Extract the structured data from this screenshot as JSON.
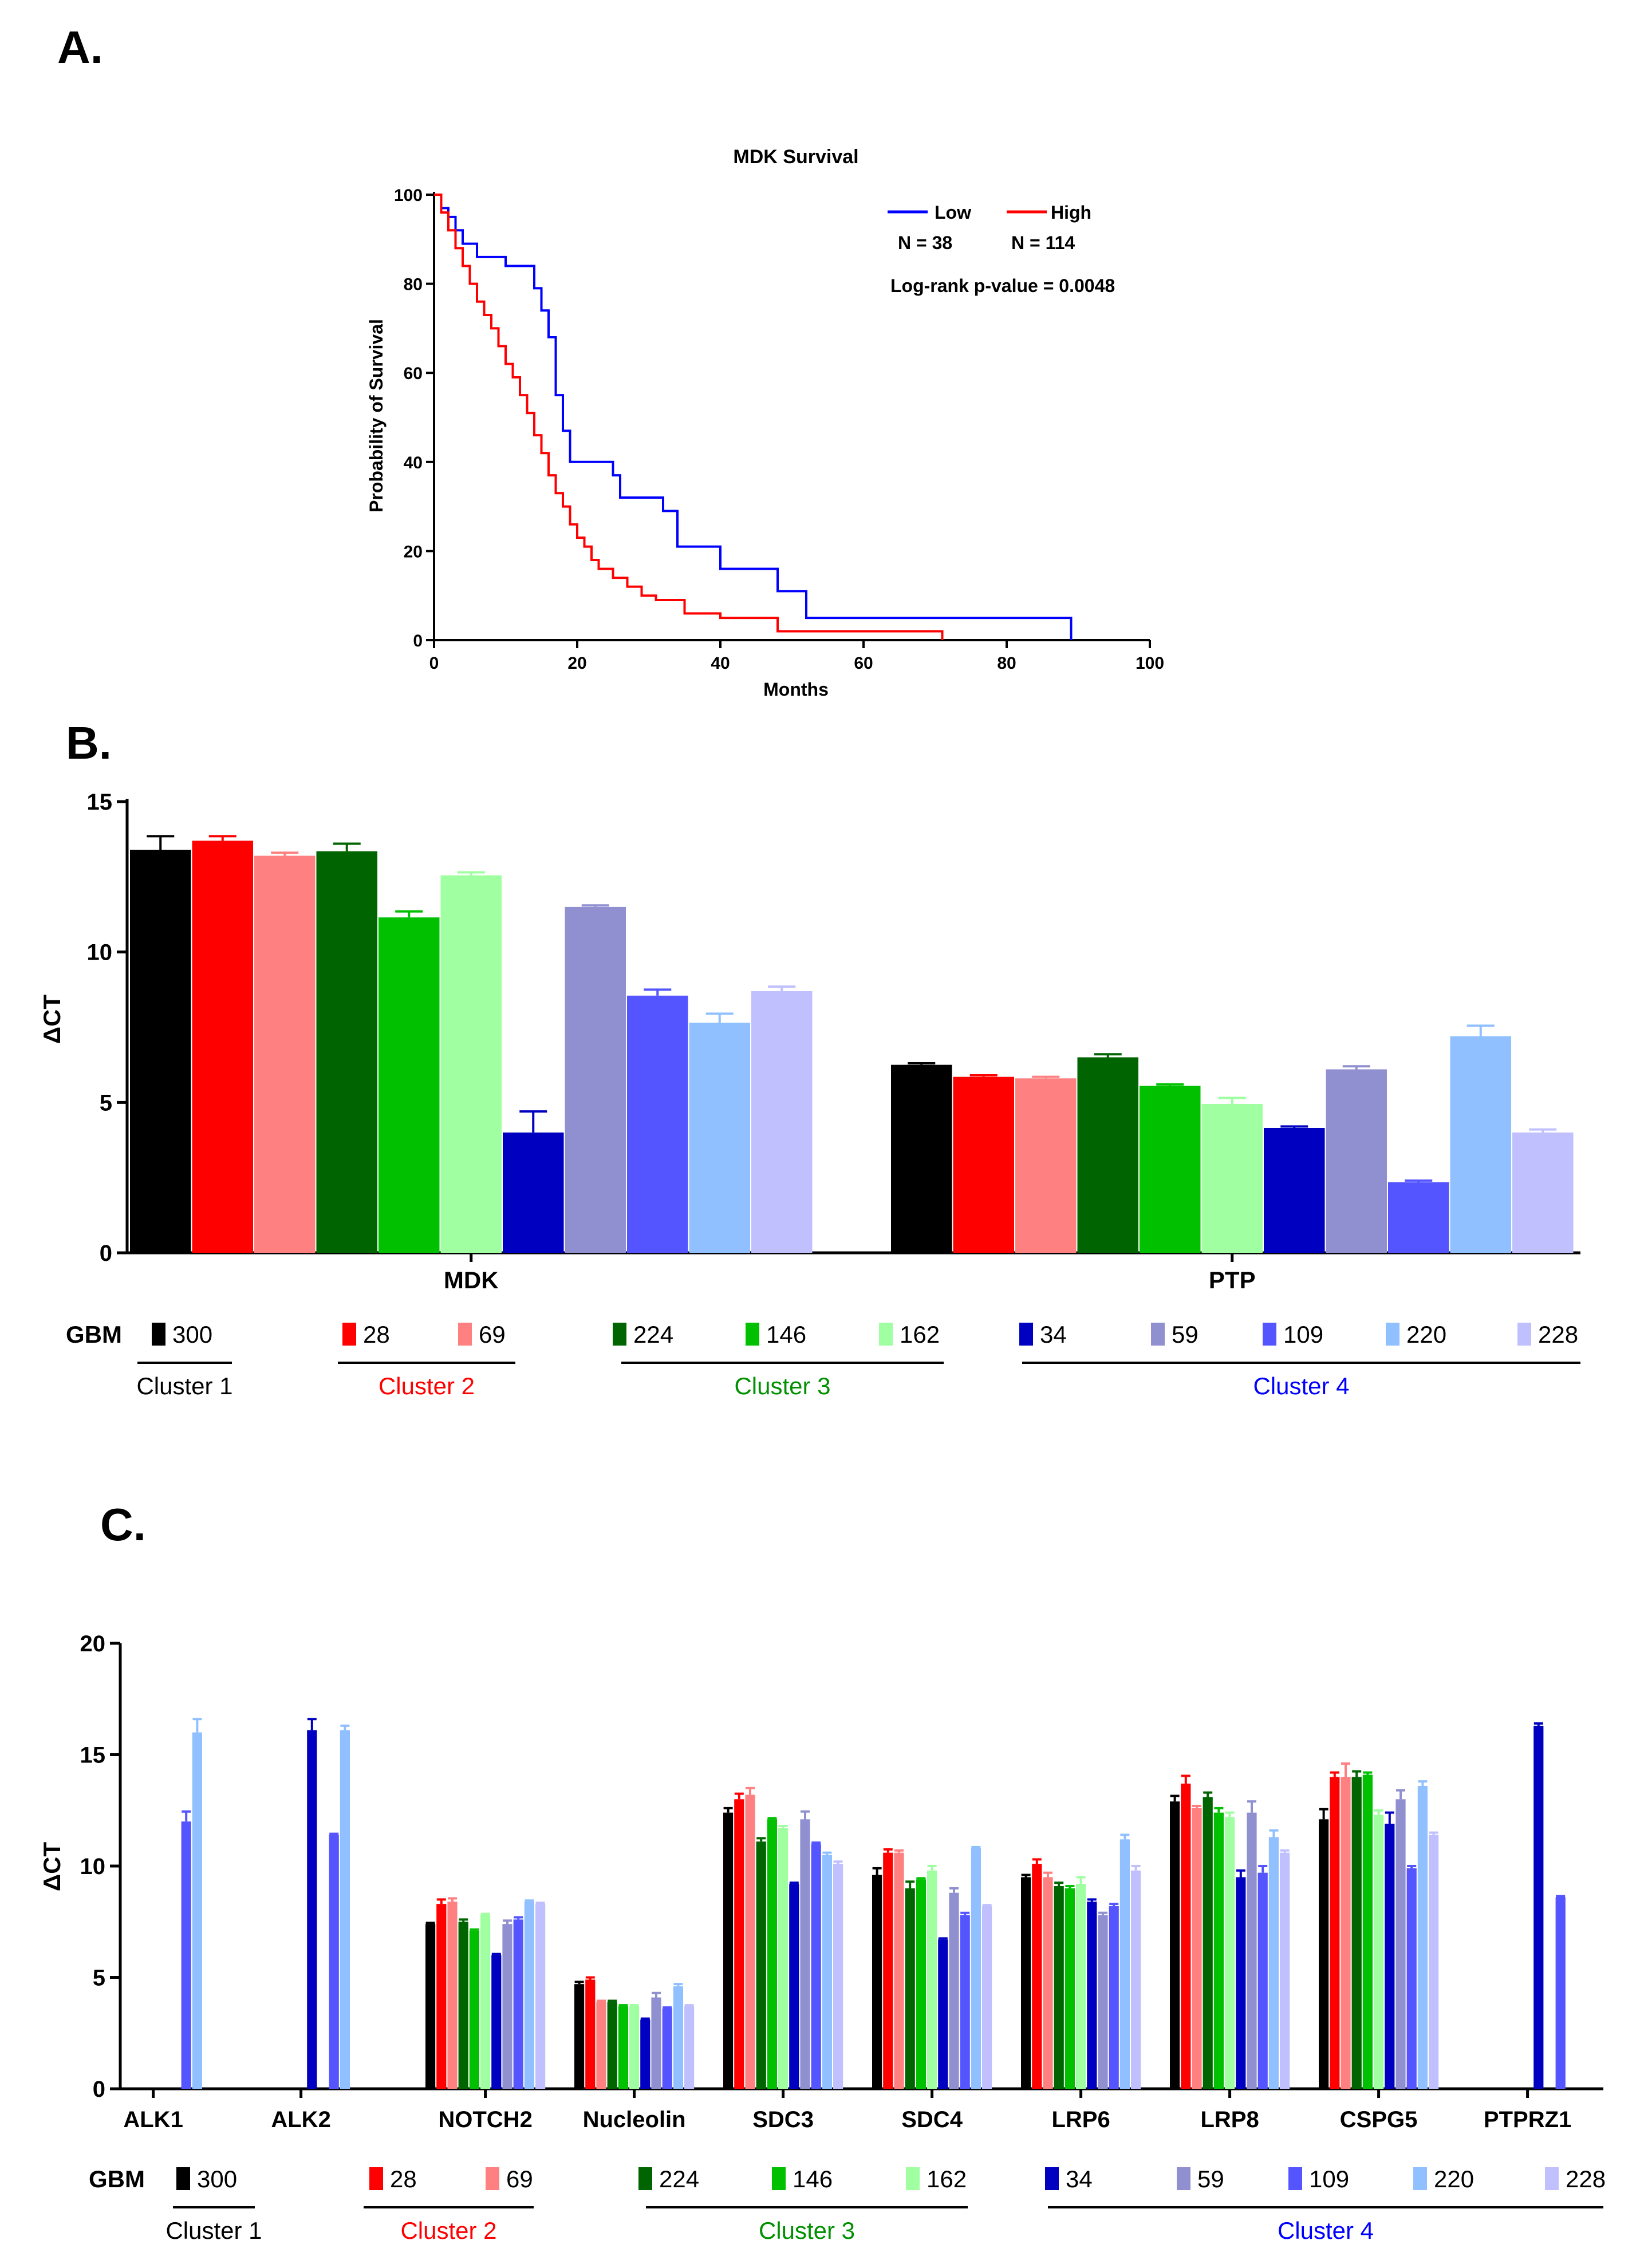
{
  "panels": {
    "a": {
      "label": "A."
    },
    "b": {
      "label": "B."
    },
    "c": {
      "label": "C."
    }
  },
  "legend": {
    "gbm_label": "GBM",
    "items": [
      {
        "id": "300",
        "color": "#000000"
      },
      {
        "id": "28",
        "color": "#ff0000"
      },
      {
        "id": "69",
        "color": "#ff8080"
      },
      {
        "id": "224",
        "color": "#006400"
      },
      {
        "id": "146",
        "color": "#00c000"
      },
      {
        "id": "162",
        "color": "#a0ffa0"
      },
      {
        "id": "34",
        "color": "#0000c0"
      },
      {
        "id": "59",
        "color": "#9090d0"
      },
      {
        "id": "109",
        "color": "#5555ff"
      },
      {
        "id": "220",
        "color": "#90c0ff"
      },
      {
        "id": "228",
        "color": "#c0c0ff"
      }
    ],
    "clusters": [
      {
        "name": "Cluster 1",
        "color": "#000000"
      },
      {
        "name": "Cluster 2",
        "color": "#ff0000"
      },
      {
        "name": "Cluster 3",
        "color": "#009000"
      },
      {
        "name": "Cluster 4",
        "color": "#0000ff"
      }
    ]
  },
  "chart_data": [
    {
      "type": "line",
      "title": "MDK Survival",
      "xlabel": "Months",
      "ylabel": "Probability of Survival",
      "xlim": [
        0,
        100
      ],
      "ylim": [
        0,
        100
      ],
      "xticks": [
        0,
        20,
        40,
        60,
        80,
        100
      ],
      "yticks": [
        0,
        20,
        40,
        60,
        80,
        100
      ],
      "legend": {
        "low_label": "Low",
        "high_label": "High",
        "low_n": "N = 38",
        "high_n": "N = 114",
        "pvalue": "Log-rank p-value = 0.0048"
      },
      "series": [
        {
          "name": "Low",
          "color": "#0000ff",
          "points": [
            [
              0,
              100
            ],
            [
              1,
              97
            ],
            [
              2,
              95
            ],
            [
              3,
              92
            ],
            [
              4,
              89
            ],
            [
              5,
              89
            ],
            [
              6,
              86
            ],
            [
              9,
              86
            ],
            [
              10,
              84
            ],
            [
              13,
              84
            ],
            [
              14,
              79
            ],
            [
              15,
              74
            ],
            [
              16,
              68
            ],
            [
              17,
              55
            ],
            [
              18,
              47
            ],
            [
              19,
              40
            ],
            [
              24,
              40
            ],
            [
              25,
              37
            ],
            [
              26,
              32
            ],
            [
              30,
              32
            ],
            [
              32,
              29
            ],
            [
              34,
              21
            ],
            [
              39,
              21
            ],
            [
              40,
              16
            ],
            [
              47,
              16
            ],
            [
              48,
              11
            ],
            [
              51,
              11
            ],
            [
              52,
              5
            ],
            [
              89,
              5
            ],
            [
              89,
              0
            ]
          ]
        },
        {
          "name": "High",
          "color": "#ff0000",
          "points": [
            [
              0,
              100
            ],
            [
              1,
              96
            ],
            [
              2,
              92
            ],
            [
              3,
              88
            ],
            [
              4,
              84
            ],
            [
              5,
              80
            ],
            [
              6,
              76
            ],
            [
              7,
              73
            ],
            [
              8,
              70
            ],
            [
              9,
              66
            ],
            [
              10,
              62
            ],
            [
              11,
              59
            ],
            [
              12,
              55
            ],
            [
              13,
              51
            ],
            [
              14,
              46
            ],
            [
              15,
              42
            ],
            [
              16,
              37
            ],
            [
              17,
              33
            ],
            [
              18,
              30
            ],
            [
              19,
              26
            ],
            [
              20,
              23
            ],
            [
              21,
              21
            ],
            [
              22,
              18
            ],
            [
              23,
              16
            ],
            [
              25,
              14
            ],
            [
              27,
              12
            ],
            [
              29,
              10
            ],
            [
              31,
              9
            ],
            [
              35,
              6
            ],
            [
              40,
              5
            ],
            [
              48,
              2
            ],
            [
              71,
              2
            ],
            [
              71,
              0
            ]
          ]
        }
      ]
    },
    {
      "type": "bar",
      "ylabel": "ΔCT",
      "ylim": [
        0,
        15
      ],
      "yticks": [
        0,
        5,
        10,
        15
      ],
      "categories": [
        "MDK",
        "PTP"
      ],
      "series": [
        {
          "name": "300",
          "values": [
            13.4,
            6.25
          ],
          "errors": [
            0.45,
            0.05
          ]
        },
        {
          "name": "28",
          "values": [
            13.7,
            5.85
          ],
          "errors": [
            0.15,
            0.05
          ]
        },
        {
          "name": "69",
          "values": [
            13.2,
            5.8
          ],
          "errors": [
            0.1,
            0.05
          ]
        },
        {
          "name": "224",
          "values": [
            13.35,
            6.5
          ],
          "errors": [
            0.25,
            0.1
          ]
        },
        {
          "name": "146",
          "values": [
            11.15,
            5.55
          ],
          "errors": [
            0.2,
            0.05
          ]
        },
        {
          "name": "162",
          "values": [
            12.55,
            4.95
          ],
          "errors": [
            0.1,
            0.2
          ]
        },
        {
          "name": "34",
          "values": [
            4.0,
            4.15
          ],
          "errors": [
            0.7,
            0.05
          ]
        },
        {
          "name": "59",
          "values": [
            11.5,
            6.1
          ],
          "errors": [
            0.05,
            0.1
          ]
        },
        {
          "name": "109",
          "values": [
            8.55,
            2.35
          ],
          "errors": [
            0.2,
            0.05
          ]
        },
        {
          "name": "220",
          "values": [
            7.65,
            7.2
          ],
          "errors": [
            0.3,
            0.35
          ]
        },
        {
          "name": "228",
          "values": [
            8.7,
            4.0
          ],
          "errors": [
            0.15,
            0.1
          ]
        }
      ]
    },
    {
      "type": "bar",
      "ylabel": "ΔCT",
      "ylim": [
        0,
        20
      ],
      "yticks": [
        0,
        5,
        10,
        15,
        20
      ],
      "categories": [
        "ALK1",
        "ALK2",
        "NOTCH2",
        "Nucleolin",
        "SDC3",
        "SDC4",
        "LRP6",
        "LRP8",
        "CSPG5",
        "PTPRZ1"
      ],
      "series": [
        {
          "name": "300",
          "values": [
            0,
            0,
            7.4,
            4.7,
            12.4,
            9.6,
            9.5,
            12.9,
            12.1,
            0
          ],
          "errors": [
            0,
            0,
            0.05,
            0.1,
            0.2,
            0.3,
            0.1,
            0.25,
            0.45,
            0
          ]
        },
        {
          "name": "28",
          "values": [
            0,
            0,
            8.3,
            4.9,
            13.0,
            10.6,
            10.1,
            13.7,
            14.0,
            0
          ],
          "errors": [
            0,
            0,
            0.2,
            0.1,
            0.25,
            0.15,
            0.2,
            0.35,
            0.2,
            0
          ]
        },
        {
          "name": "69",
          "values": [
            0,
            0,
            8.4,
            3.9,
            13.2,
            10.6,
            9.5,
            12.6,
            14.0,
            0
          ],
          "errors": [
            0,
            0,
            0.15,
            0.05,
            0.3,
            0.1,
            0.2,
            0.1,
            0.6,
            0
          ]
        },
        {
          "name": "224",
          "values": [
            0,
            0,
            7.5,
            3.9,
            11.1,
            9.0,
            9.1,
            13.1,
            14.0,
            0
          ],
          "errors": [
            0,
            0,
            0.1,
            0.05,
            0.15,
            0.3,
            0.15,
            0.2,
            0.25,
            0
          ]
        },
        {
          "name": "146",
          "values": [
            0,
            0,
            7.1,
            3.7,
            12.1,
            9.4,
            9.0,
            12.4,
            14.1,
            0
          ],
          "errors": [
            0,
            0,
            0.05,
            0.05,
            0.05,
            0.05,
            0.1,
            0.2,
            0.1,
            0
          ]
        },
        {
          "name": "162",
          "values": [
            0,
            0,
            7.8,
            3.7,
            11.7,
            9.8,
            9.2,
            12.2,
            12.3,
            0
          ],
          "errors": [
            0,
            0,
            0.05,
            0.05,
            0.1,
            0.2,
            0.3,
            0.2,
            0.2,
            0
          ]
        },
        {
          "name": "34",
          "values": [
            0,
            16.1,
            6.0,
            3.1,
            9.2,
            6.7,
            8.4,
            9.5,
            11.9,
            16.3
          ],
          "errors": [
            0,
            0.5,
            0.05,
            0.05,
            0.05,
            0.05,
            0.1,
            0.3,
            0.5,
            0.1
          ]
        },
        {
          "name": "59",
          "values": [
            0,
            0,
            7.4,
            4.1,
            12.1,
            8.8,
            7.8,
            12.4,
            13.0,
            0
          ],
          "errors": [
            0,
            0,
            0.15,
            0.2,
            0.35,
            0.2,
            0.1,
            0.5,
            0.4,
            0
          ]
        },
        {
          "name": "109",
          "values": [
            12.0,
            11.4,
            7.6,
            3.6,
            11.0,
            7.8,
            8.2,
            9.7,
            9.9,
            8.6
          ],
          "errors": [
            0.45,
            0.05,
            0.1,
            0.05,
            0.05,
            0.1,
            0.1,
            0.3,
            0.1,
            0.05
          ]
        },
        {
          "name": "220",
          "values": [
            16.0,
            16.1,
            8.4,
            4.6,
            10.5,
            10.8,
            11.2,
            11.3,
            13.6,
            0
          ],
          "errors": [
            0.6,
            0.2,
            0.05,
            0.1,
            0.1,
            0.05,
            0.2,
            0.3,
            0.2,
            0
          ]
        },
        {
          "name": "228",
          "values": [
            0,
            0,
            8.3,
            3.7,
            10.1,
            8.2,
            9.8,
            10.6,
            11.4,
            0
          ],
          "errors": [
            0,
            0,
            0.05,
            0.05,
            0.1,
            0.05,
            0.2,
            0.1,
            0.1,
            0
          ]
        }
      ]
    }
  ]
}
